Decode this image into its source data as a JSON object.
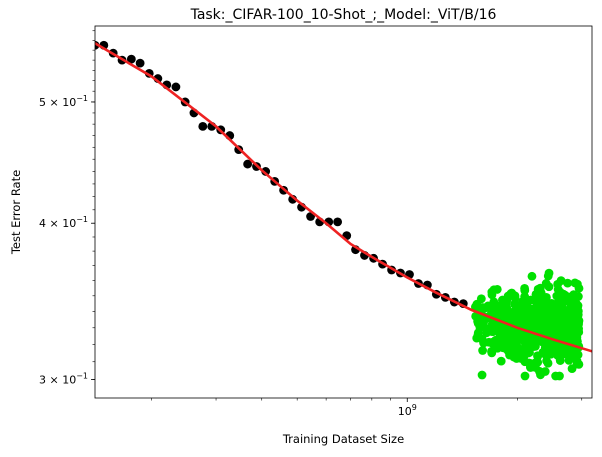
{
  "chart_data": {
    "type": "scatter",
    "title": "Task:_CIFAR-100_10-Shot_;_Model:_ViT/B/16",
    "xlabel": "Training Dataset Size",
    "ylabel": "Test Error Rate",
    "xscale": "log",
    "yscale": "log",
    "xlim": [
      140000000,
      3200000000
    ],
    "ylim": [
      0.29,
      0.575
    ],
    "grid": false,
    "legend": "none",
    "x_ticks": [
      {
        "value": 1000000000,
        "label": "10",
        "exp": "9"
      }
    ],
    "y_ticks": [
      {
        "value": 0.5,
        "label": "5 × 10",
        "exp": "−1"
      },
      {
        "value": 0.4,
        "label": "4 × 10",
        "exp": "−1"
      },
      {
        "value": 0.3,
        "label": "3 × 10",
        "exp": "−1"
      }
    ],
    "colors": {
      "observed": "#000000",
      "heldout": "#00e000",
      "fit": "#ee2222"
    },
    "series": [
      {
        "kind": "scatter",
        "color": "#000000",
        "points": [
          [
            140000000,
            0.555
          ],
          [
            148000000,
            0.555
          ],
          [
            157000000,
            0.547
          ],
          [
            166000000,
            0.54
          ],
          [
            176000000,
            0.541
          ],
          [
            186000000,
            0.537
          ],
          [
            197000000,
            0.527
          ],
          [
            208000000,
            0.522
          ],
          [
            220000000,
            0.516
          ],
          [
            233000000,
            0.514
          ],
          [
            247000000,
            0.5
          ],
          [
            261000000,
            0.49
          ],
          [
            276000000,
            0.478
          ],
          [
            292000000,
            0.478
          ],
          [
            309000000,
            0.475
          ],
          [
            327000000,
            0.47
          ],
          [
            346000000,
            0.458
          ],
          [
            366000000,
            0.446
          ],
          [
            387000000,
            0.444
          ],
          [
            410000000,
            0.44
          ],
          [
            434000000,
            0.432
          ],
          [
            459000000,
            0.425
          ],
          [
            486000000,
            0.418
          ],
          [
            514000000,
            0.412
          ],
          [
            544000000,
            0.405
          ],
          [
            576000000,
            0.401
          ],
          [
            610000000,
            0.401
          ],
          [
            645000000,
            0.401
          ],
          [
            683000000,
            0.391
          ],
          [
            722000000,
            0.381
          ],
          [
            764000000,
            0.377
          ],
          [
            809000000,
            0.375
          ],
          [
            856000000,
            0.371
          ],
          [
            906000000,
            0.367
          ],
          [
            958000000,
            0.365
          ],
          [
            1014000000,
            0.364
          ],
          [
            1073000000,
            0.358
          ],
          [
            1135000000,
            0.357
          ],
          [
            1201000000,
            0.351
          ],
          [
            1271000000,
            0.349
          ],
          [
            1345000000,
            0.346
          ],
          [
            1423000000,
            0.345
          ]
        ]
      },
      {
        "kind": "scatter",
        "color": "#00e000",
        "generated": true,
        "count": 700,
        "x_range": [
          1500000000,
          2950000000
        ],
        "y_center": 0.333,
        "y_spread": [
          0.302,
          0.372
        ]
      },
      {
        "kind": "line",
        "color": "#ee2222",
        "points": [
          [
            140000000,
            0.557
          ],
          [
            200000000,
            0.524
          ],
          [
            300000000,
            0.478
          ],
          [
            400000000,
            0.441
          ],
          [
            500000000,
            0.417
          ],
          [
            600000000,
            0.4
          ],
          [
            700000000,
            0.385
          ],
          [
            800000000,
            0.376
          ],
          [
            1000000000,
            0.362
          ],
          [
            1200000000,
            0.352
          ],
          [
            1500000000,
            0.341
          ],
          [
            2000000000,
            0.33
          ],
          [
            2500000000,
            0.323
          ],
          [
            3200000000,
            0.316
          ]
        ]
      }
    ]
  }
}
